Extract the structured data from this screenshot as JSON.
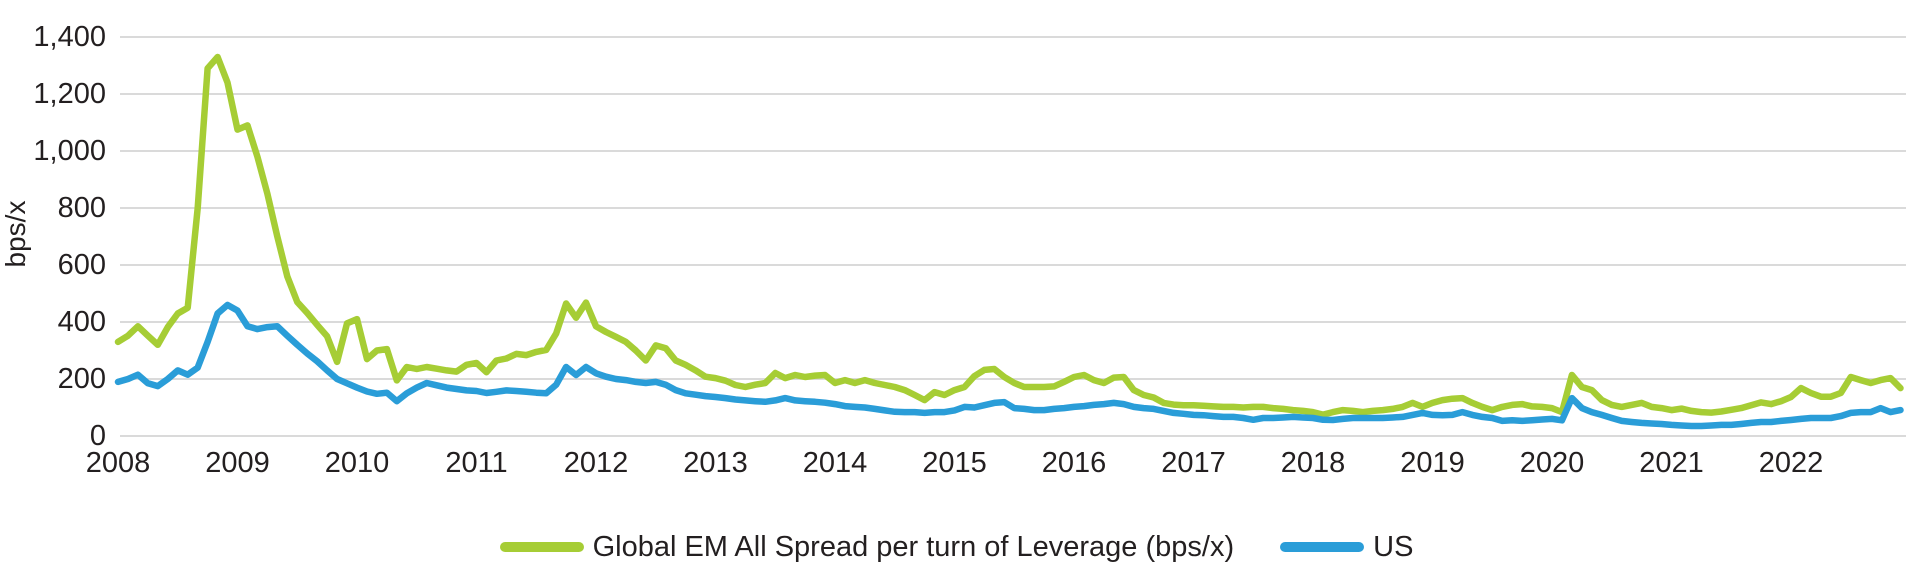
{
  "chart_data": {
    "type": "line",
    "title": "",
    "ylabel": "bps/x",
    "xlabel": "",
    "grid": true,
    "legend_position": "bottom",
    "ylim": [
      0,
      1400
    ],
    "y_ticks": [
      0,
      200,
      400,
      600,
      800,
      1000,
      1200,
      1400
    ],
    "y_tick_labels": [
      "0",
      "200",
      "400",
      "600",
      "800",
      "1,000",
      "1,200",
      "1,400"
    ],
    "x_tick_labels": [
      "2008",
      "2009",
      "2010",
      "2011",
      "2012",
      "2013",
      "2014",
      "2015",
      "2016",
      "2017",
      "2018",
      "2019",
      "2020",
      "2021",
      "2022"
    ],
    "x_frequency": "monthly",
    "x_range": "Jan 2008 - Dec 2022",
    "axis_text_color": "#231f20",
    "gridline_color": "#d4d4d4",
    "series": [
      {
        "name": "Global EM All Spread per turn of Leverage (bps/x)",
        "color": "#a6cd35",
        "values": [
          330,
          352,
          385,
          352,
          320,
          382,
          430,
          450,
          800,
          1290,
          1330,
          1240,
          1075,
          1090,
          980,
          850,
          700,
          560,
          470,
          432,
          390,
          350,
          260,
          395,
          410,
          270,
          300,
          305,
          195,
          242,
          235,
          242,
          236,
          230,
          226,
          250,
          256,
          224,
          265,
          272,
          288,
          284,
          295,
          302,
          360,
          465,
          415,
          468,
          385,
          365,
          348,
          330,
          300,
          265,
          318,
          308,
          265,
          250,
          230,
          208,
          203,
          194,
          179,
          172,
          180,
          186,
          221,
          203,
          214,
          207,
          212,
          214,
          186,
          196,
          186,
          196,
          186,
          179,
          172,
          161,
          144,
          126,
          154,
          144,
          161,
          172,
          210,
          232,
          235,
          207,
          186,
          172,
          172,
          172,
          174,
          190,
          207,
          214,
          196,
          186,
          205,
          207,
          161,
          144,
          135,
          116,
          110,
          108,
          108,
          106,
          104,
          102,
          102,
          100,
          102,
          102,
          98,
          95,
          91,
          88,
          84,
          75,
          84,
          91,
          88,
          84,
          88,
          91,
          95,
          102,
          116,
          102,
          116,
          126,
          131,
          133,
          116,
          102,
          91,
          102,
          109,
          112,
          104,
          102,
          98,
          84,
          214,
          172,
          161,
          126,
          109,
          102,
          109,
          116,
          102,
          98,
          91,
          96,
          88,
          84,
          82,
          86,
          92,
          98,
          108,
          118,
          112,
          122,
          137,
          168,
          151,
          138,
          138,
          151,
          207,
          196,
          186,
          196,
          203,
          168
        ]
      },
      {
        "name": "US",
        "color": "#2a9dd8",
        "values": [
          190,
          200,
          215,
          185,
          175,
          200,
          230,
          215,
          240,
          330,
          430,
          460,
          440,
          385,
          375,
          382,
          385,
          352,
          320,
          290,
          262,
          230,
          200,
          185,
          170,
          156,
          148,
          152,
          122,
          150,
          170,
          186,
          178,
          170,
          165,
          160,
          158,
          151,
          155,
          160,
          158,
          155,
          152,
          150,
          180,
          242,
          214,
          242,
          220,
          208,
          200,
          196,
          190,
          186,
          190,
          180,
          161,
          150,
          145,
          140,
          137,
          133,
          128,
          125,
          122,
          120,
          125,
          133,
          125,
          122,
          120,
          117,
          112,
          105,
          102,
          100,
          95,
          90,
          85,
          84,
          84,
          81,
          84,
          84,
          90,
          102,
          100,
          108,
          116,
          119,
          98,
          95,
          91,
          91,
          95,
          98,
          102,
          105,
          109,
          112,
          116,
          112,
          102,
          98,
          95,
          88,
          81,
          78,
          74,
          73,
          70,
          67,
          67,
          63,
          57,
          63,
          63,
          65,
          67,
          65,
          63,
          57,
          56,
          60,
          63,
          63,
          63,
          63,
          65,
          67,
          74,
          81,
          74,
          73,
          74,
          84,
          74,
          67,
          63,
          53,
          55,
          53,
          55,
          58,
          60,
          55,
          133,
          98,
          84,
          74,
          63,
          53,
          49,
          46,
          44,
          42,
          39,
          37,
          35,
          35,
          37,
          39,
          39,
          42,
          46,
          49,
          49,
          53,
          56,
          60,
          63,
          63,
          63,
          70,
          81,
          84,
          84,
          98,
          84,
          91
        ]
      }
    ]
  }
}
